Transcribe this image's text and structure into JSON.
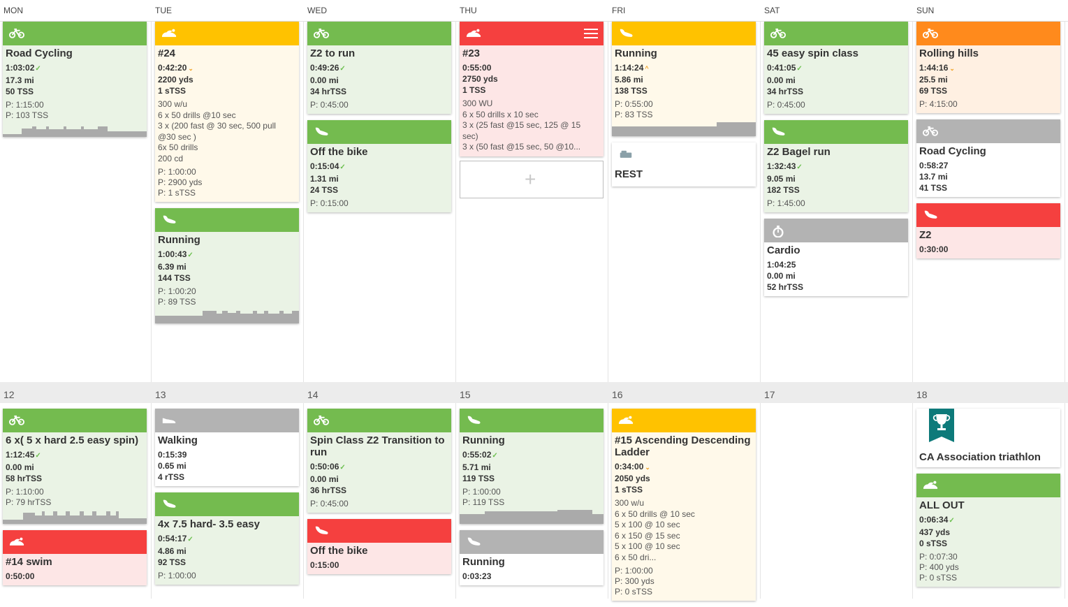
{
  "day_headers": [
    "MON",
    "TUE",
    "WED",
    "THU",
    "FRI",
    "SAT",
    "SUN"
  ],
  "week2_dates": [
    "12",
    "13",
    "14",
    "15",
    "16",
    "17",
    "18"
  ],
  "week1": [
    [
      {
        "type": "bike-icon",
        "color": "#74bb4f",
        "title": "Road Cycling",
        "duration": "1:03:02",
        "status": "✓",
        "dist": "17.3 mi",
        "tss": "50 TSS",
        "plans": [
          "P: 1:15:00",
          "P: 103 TSS"
        ],
        "chart": "a"
      }
    ],
    [
      {
        "type": "swim-icon",
        "color": "#ffc200",
        "title": "#24",
        "duration": "0:42:20",
        "status": "⌄",
        "dist": "2200 yds",
        "tss": "1 sTSS",
        "desc": [
          "300 w/u",
          "6 x 50 drills @10 sec",
          "3 x (200 fast @ 30 sec, 500 pull",
          "@30 sec )",
          "6x 50 drills",
          "200 cd"
        ],
        "plans": [
          "P: 1:00:00",
          "P: 2900 yds",
          "P: 1 sTSS"
        ]
      },
      {
        "type": "run-icon",
        "color": "#74bb4f",
        "title": "Running",
        "duration": "1:00:43",
        "status": "✓",
        "dist": "6.39 mi",
        "tss": "144 TSS",
        "plans": [
          "P: 1:00:20",
          "P: 89 TSS"
        ],
        "chart": "b"
      }
    ],
    [
      {
        "type": "bike-icon",
        "color": "#74bb4f",
        "title": "Z2 to run",
        "duration": "0:49:26",
        "status": "✓",
        "dist": "0.00 mi",
        "tss": "34 hrTSS",
        "plans": [
          "P: 0:45:00"
        ]
      },
      {
        "type": "run-icon",
        "color": "#74bb4f",
        "title": "Off the bike",
        "duration": "0:15:04",
        "status": "✓",
        "dist": "1.31 mi",
        "tss": "24 TSS",
        "plans": [
          "P: 0:15:00"
        ]
      }
    ],
    [
      {
        "type": "swim-icon",
        "color": "#f5403f",
        "title": "#23",
        "duration": "0:55:00",
        "status": "",
        "dist": "2750 yds",
        "tss": "1 TSS",
        "desc": [
          "300 WU",
          "6 x 50 drills x 10 sec",
          "3 x (25 fast @15 sec, 125 @ 15",
          "sec)",
          "3 x (50 fast @15 sec, 50 @10..."
        ],
        "plans": [],
        "menu": true
      },
      {
        "type": "add-slot"
      }
    ],
    [
      {
        "type": "run-icon",
        "color": "#ffc200",
        "title": "Running",
        "duration": "1:14:24",
        "status": "^",
        "dist": "5.86 mi",
        "tss": "138 TSS",
        "plans": [
          "P: 0:55:00",
          "P: 83 TSS"
        ],
        "chart": "c"
      },
      {
        "type": "rest-icon",
        "color": "#ffffff",
        "title": "REST"
      }
    ],
    [
      {
        "type": "bike-icon",
        "color": "#74bb4f",
        "title": "45 easy spin class",
        "duration": "0:41:05",
        "status": "✓",
        "dist": "0.00 mi",
        "tss": "34 hrTSS",
        "plans": [
          "P: 0:45:00"
        ]
      },
      {
        "type": "run-icon",
        "color": "#74bb4f",
        "title": "Z2 Bagel run",
        "duration": "1:32:43",
        "status": "✓",
        "dist": "9.05 mi",
        "tss": "182 TSS",
        "plans": [
          "P: 1:45:00"
        ]
      },
      {
        "type": "stopwatch-icon",
        "color": "#b3b3b3",
        "title": "Cardio",
        "duration": "1:04:25",
        "status": "",
        "dist": "0.00 mi",
        "tss": "52 hrTSS",
        "plans": []
      }
    ],
    [
      {
        "type": "bike-icon",
        "color": "#ff8a1c",
        "title": "Rolling hills",
        "duration": "1:44:16",
        "status": "⌄",
        "dist": "25.5 mi",
        "tss": "69 TSS",
        "plans": [
          "P: 4:15:00"
        ]
      },
      {
        "type": "bike-icon",
        "color": "#b3b3b3",
        "title": "Road Cycling",
        "duration": "0:58:27",
        "status": "",
        "dist": "13.7 mi",
        "tss": "41 TSS",
        "plans": []
      },
      {
        "type": "run-icon",
        "color": "#f5403f",
        "title": "Z2",
        "duration": "0:30:00",
        "status": "",
        "plans": []
      }
    ]
  ],
  "week2": [
    [
      {
        "type": "bike-icon",
        "color": "#74bb4f",
        "title": "6 x( 5 x hard 2.5 easy spin)",
        "duration": "1:12:45",
        "status": "✓",
        "dist": "0.00 mi",
        "tss": "58 hrTSS",
        "plans": [
          "P: 1:10:00",
          "P: 79 hrTSS"
        ],
        "chart": "d"
      },
      {
        "type": "swim-icon",
        "color": "#f5403f",
        "title": "#14 swim",
        "duration": "0:50:00",
        "status": "",
        "plans": []
      }
    ],
    [
      {
        "type": "shoe-icon",
        "color": "#b3b3b3",
        "title": "Walking",
        "duration": "0:15:39",
        "status": "",
        "dist": "0.65 mi",
        "tss": "4 rTSS",
        "plans": []
      },
      {
        "type": "run-icon",
        "color": "#74bb4f",
        "title": "4x 7.5 hard- 3.5 easy",
        "duration": "0:54:17",
        "status": "✓",
        "dist": "4.86 mi",
        "tss": "92 TSS",
        "plans": [
          "P: 1:00:00"
        ]
      }
    ],
    [
      {
        "type": "bike-icon",
        "color": "#74bb4f",
        "title": "Spin Class Z2 Transition to run",
        "duration": "0:50:06",
        "status": "✓",
        "dist": "0.00 mi",
        "tss": "36 hrTSS",
        "plans": [
          "P: 0:45:00"
        ]
      },
      {
        "type": "run-icon",
        "color": "#f5403f",
        "title": "Off the bike",
        "duration": "0:15:00",
        "status": "",
        "plans": []
      }
    ],
    [
      {
        "type": "run-icon",
        "color": "#74bb4f",
        "title": "Running",
        "duration": "0:55:02",
        "status": "✓",
        "dist": "5.71 mi",
        "tss": "119 TSS",
        "plans": [
          "P: 1:00:00",
          "P: 119 TSS"
        ],
        "chart": "e"
      },
      {
        "type": "run-icon",
        "color": "#b3b3b3",
        "title": "Running",
        "duration": "0:03:23",
        "status": "",
        "plans": []
      }
    ],
    [
      {
        "type": "swim-icon",
        "color": "#ffc200",
        "title": "#15 Ascending Descending Ladder",
        "duration": "0:34:00",
        "status": "⌄",
        "dist": "2050 yds",
        "tss": "1 sTSS",
        "desc": [
          "300 w/u",
          "6 x 50 drills @ 10 sec",
          "5 x 100 @ 10 sec",
          "6 x 150 @ 15 sec",
          "5 x 100 @ 10 sec",
          "6 x 50 dri..."
        ],
        "plans": [
          "P: 1:00:00",
          "P: 300 yds",
          "P: 0 sTSS"
        ]
      }
    ],
    [],
    [
      {
        "type": "trophy-icon",
        "color": "#ffffff",
        "title": "CA Association triathlon"
      },
      {
        "type": "swim-icon",
        "color": "#74bb4f",
        "title": "ALL OUT",
        "duration": "0:06:34",
        "status": "✓",
        "dist": "437 yds",
        "tss": "0 sTSS",
        "plans": [
          "P: 0:07:30",
          "P: 400 yds",
          "P: 0 sTSS"
        ]
      }
    ]
  ]
}
